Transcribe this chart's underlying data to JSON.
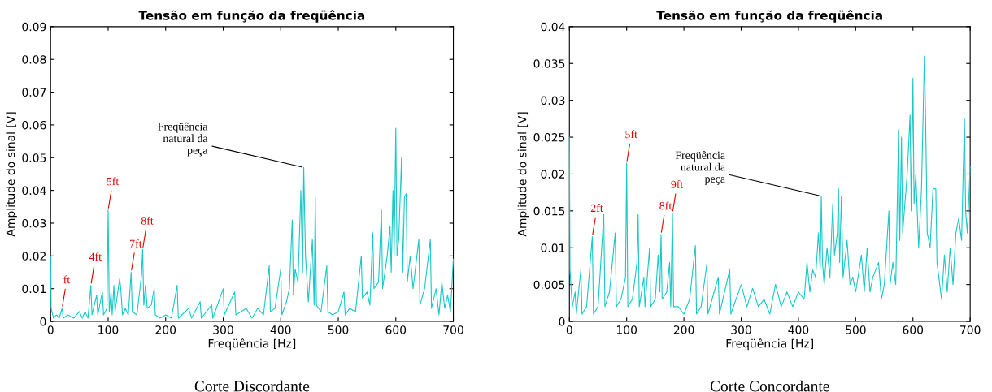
{
  "chart_data": [
    {
      "type": "line",
      "title": "Tensão em função da freqüência",
      "xlabel": "Freqüência [Hz]",
      "ylabel": "Amplitude do sinal [V]",
      "color": "#19c8c8",
      "xlim": [
        0,
        700
      ],
      "xticks": [
        0,
        100,
        200,
        300,
        400,
        500,
        600,
        700
      ],
      "ylim": [
        0,
        0.09
      ],
      "yticks": [
        0,
        0.01,
        0.02,
        0.03,
        0.04,
        0.05,
        0.06,
        0.07,
        0.08,
        0.09
      ],
      "x": [
        0,
        1,
        5,
        10,
        15,
        20,
        22,
        30,
        40,
        50,
        55,
        60,
        65,
        70,
        72,
        80,
        82,
        90,
        92,
        98,
        100,
        102,
        105,
        107,
        110,
        112,
        120,
        122,
        125,
        130,
        135,
        140,
        142,
        150,
        158,
        160,
        162,
        165,
        168,
        175,
        180,
        182,
        190,
        200,
        210,
        220,
        222,
        240,
        245,
        260,
        262,
        280,
        282,
        300,
        302,
        320,
        322,
        340,
        350,
        360,
        370,
        380,
        382,
        390,
        400,
        402,
        410,
        415,
        420,
        422,
        425,
        430,
        435,
        438,
        440,
        443,
        448,
        455,
        458,
        460,
        462,
        470,
        480,
        482,
        490,
        500,
        510,
        512,
        520,
        530,
        540,
        542,
        550,
        555,
        560,
        562,
        570,
        575,
        577,
        585,
        590,
        592,
        595,
        597,
        600,
        602,
        605,
        610,
        612,
        615,
        618,
        620,
        625,
        630,
        640,
        642,
        650,
        660,
        662,
        670,
        675,
        680,
        685,
        690,
        695,
        700
      ],
      "values": [
        0.02,
        0.004,
        0.001,
        0.002,
        0.001,
        0.004,
        0.001,
        0.002,
        0.001,
        0.003,
        0.001,
        0.003,
        0.001,
        0.011,
        0.002,
        0.008,
        0.002,
        0.009,
        0.002,
        0.004,
        0.034,
        0.003,
        0.009,
        0.002,
        0.011,
        0.003,
        0.013,
        0.01,
        0.002,
        0.004,
        0.002,
        0.015,
        0.003,
        0.002,
        0.014,
        0.022,
        0.005,
        0.011,
        0.004,
        0.005,
        0.01,
        0.002,
        0.001,
        0.002,
        0.001,
        0.011,
        0.001,
        0.004,
        0.001,
        0.006,
        0.001,
        0.005,
        0.001,
        0.01,
        0.002,
        0.009,
        0.002,
        0.004,
        0.001,
        0.004,
        0.002,
        0.017,
        0.003,
        0.004,
        0.016,
        0.002,
        0.006,
        0.01,
        0.031,
        0.008,
        0.016,
        0.012,
        0.04,
        0.015,
        0.047,
        0.02,
        0.006,
        0.025,
        0.005,
        0.038,
        0.005,
        0.003,
        0.017,
        0.003,
        0.002,
        0.003,
        0.009,
        0.002,
        0.004,
        0.003,
        0.02,
        0.007,
        0.009,
        0.005,
        0.027,
        0.01,
        0.012,
        0.034,
        0.01,
        0.02,
        0.029,
        0.015,
        0.04,
        0.02,
        0.059,
        0.02,
        0.025,
        0.05,
        0.015,
        0.038,
        0.039,
        0.012,
        0.02,
        0.01,
        0.025,
        0.005,
        0.01,
        0.025,
        0.004,
        0.01,
        0.002,
        0.012,
        0.004,
        0.008,
        0.003,
        0.019
      ],
      "annotations": [
        {
          "text": "ft",
          "x": 20,
          "y": 0.004
        },
        {
          "text": "4ft",
          "x": 70,
          "y": 0.011
        },
        {
          "text": "5ft",
          "x": 100,
          "y": 0.034
        },
        {
          "text": "7ft",
          "x": 140,
          "y": 0.015
        },
        {
          "text": "8ft",
          "x": 160,
          "y": 0.022
        },
        {
          "text": "Freqüência\nnatural da\npeça",
          "x": 440,
          "y": 0.047
        },
        "Corte Discordante"
      ]
    },
    {
      "type": "line",
      "title": "Tensão em função da freqüência",
      "xlabel": "Freqüência [Hz]",
      "ylabel": "Amplitude do sinal [V]",
      "color": "#19c8c8",
      "xlim": [
        0,
        700
      ],
      "xticks": [
        0,
        100,
        200,
        300,
        400,
        500,
        600,
        700
      ],
      "ylim": [
        0,
        0.04
      ],
      "yticks": [
        0,
        0.005,
        0.01,
        0.015,
        0.02,
        0.025,
        0.03,
        0.035,
        0.04
      ],
      "x": [
        0,
        1,
        5,
        10,
        12,
        20,
        22,
        30,
        40,
        42,
        50,
        60,
        62,
        70,
        80,
        82,
        90,
        98,
        100,
        102,
        110,
        118,
        120,
        122,
        130,
        132,
        140,
        142,
        150,
        155,
        158,
        160,
        162,
        170,
        175,
        177,
        180,
        182,
        190,
        200,
        210,
        220,
        222,
        230,
        240,
        242,
        260,
        262,
        280,
        282,
        300,
        310,
        320,
        330,
        340,
        350,
        360,
        370,
        380,
        390,
        400,
        410,
        415,
        420,
        425,
        430,
        435,
        438,
        440,
        442,
        445,
        450,
        455,
        460,
        463,
        468,
        470,
        472,
        475,
        478,
        485,
        490,
        495,
        500,
        510,
        515,
        520,
        525,
        530,
        540,
        545,
        550,
        558,
        560,
        565,
        570,
        575,
        577,
        580,
        582,
        590,
        595,
        597,
        600,
        602,
        605,
        610,
        615,
        620,
        622,
        625,
        630,
        635,
        640,
        642,
        650,
        655,
        660,
        665,
        670,
        675,
        680,
        685,
        690,
        692,
        695,
        700
      ],
      "values": [
        0.025,
        0.007,
        0.002,
        0.004,
        0.001,
        0.007,
        0.001,
        0.002,
        0.0115,
        0.001,
        0.002,
        0.0145,
        0.002,
        0.004,
        0.012,
        0.002,
        0.003,
        0.006,
        0.0215,
        0.002,
        0.003,
        0.008,
        0.0145,
        0.002,
        0.006,
        0.002,
        0.01,
        0.002,
        0.003,
        0.009,
        0.004,
        0.0118,
        0.003,
        0.004,
        0.008,
        0.002,
        0.0147,
        0.002,
        0.002,
        0.001,
        0.003,
        0.0103,
        0.001,
        0.002,
        0.0078,
        0.001,
        0.006,
        0.001,
        0.007,
        0.001,
        0.005,
        0.002,
        0.0045,
        0.002,
        0.003,
        0.001,
        0.005,
        0.002,
        0.004,
        0.002,
        0.004,
        0.003,
        0.008,
        0.004,
        0.007,
        0.006,
        0.012,
        0.007,
        0.017,
        0.008,
        0.005,
        0.01,
        0.006,
        0.016,
        0.009,
        0.012,
        0.018,
        0.008,
        0.017,
        0.006,
        0.011,
        0.005,
        0.006,
        0.004,
        0.009,
        0.004,
        0.01,
        0.004,
        0.006,
        0.008,
        0.003,
        0.005,
        0.015,
        0.005,
        0.008,
        0.005,
        0.026,
        0.011,
        0.025,
        0.012,
        0.02,
        0.028,
        0.015,
        0.033,
        0.016,
        0.02,
        0.01,
        0.018,
        0.036,
        0.028,
        0.012,
        0.01,
        0.018,
        0.018,
        0.008,
        0.003,
        0.009,
        0.004,
        0.01,
        0.005,
        0.012,
        0.014,
        0.011,
        0.0275,
        0.015,
        0.012,
        0.021
      ],
      "annotations": [
        {
          "text": "2ft",
          "x": 40,
          "y": 0.0115
        },
        {
          "text": "5ft",
          "x": 100,
          "y": 0.0215
        },
        {
          "text": "8ft",
          "x": 160,
          "y": 0.0118
        },
        {
          "text": "9ft",
          "x": 180,
          "y": 0.0147
        },
        {
          "text": "Freqüência\nnatural da\npeça",
          "x": 440,
          "y": 0.017
        },
        "Corte Concordante"
      ]
    }
  ]
}
